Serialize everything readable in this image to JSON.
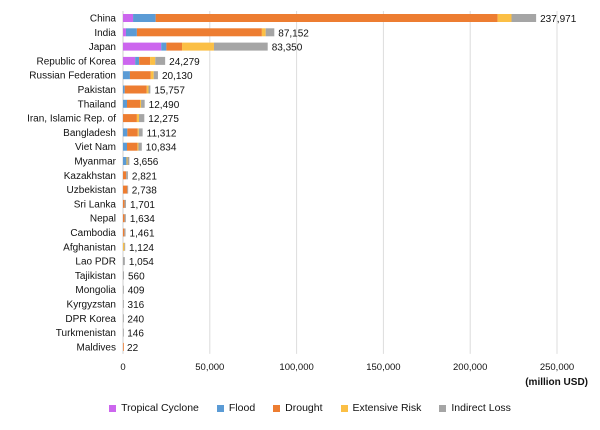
{
  "chart_data": {
    "type": "bar",
    "orientation": "horizontal",
    "stacked": true,
    "xlabel": "(million USD)",
    "xlim": [
      0,
      270000
    ],
    "xticks": [
      0,
      50000,
      100000,
      150000,
      200000,
      250000
    ],
    "xtick_labels": [
      "0",
      "50,000",
      "100,000",
      "150,000",
      "200,000",
      "250,000"
    ],
    "grid": "vertical",
    "legend_position": "bottom",
    "categories": [
      "China",
      "India",
      "Japan",
      "Republic of Korea",
      "Russian Federation",
      "Pakistan",
      "Thailand",
      "Iran, Islamic Rep. of",
      "Bangladesh",
      "Viet Nam",
      "Myanmar",
      "Kazakhstan",
      "Uzbekistan",
      "Sri Lanka",
      "Nepal",
      "Cambodia",
      "Afghanistan",
      "Lao PDR",
      "Tajikistan",
      "Mongolia",
      "Kyrgyzstan",
      "DPR Korea",
      "Turkmenistan",
      "Maldives"
    ],
    "total_labels": [
      "237,971",
      "87,152",
      "83,350",
      "24,279",
      "20,130",
      "15,757",
      "12,490",
      "12,275",
      "11,312",
      "10,834",
      "3,656",
      "2,821",
      "2,738",
      "1,701",
      "1,634",
      "1,461",
      "1,124",
      "1,054",
      "560",
      "409",
      "316",
      "240",
      "146",
      "22"
    ],
    "totals": [
      237971,
      87152,
      83350,
      24279,
      20130,
      15757,
      12490,
      12275,
      11312,
      10834,
      3656,
      2821,
      2738,
      1701,
      1634,
      1461,
      1124,
      1054,
      560,
      409,
      316,
      240,
      146,
      22
    ],
    "series": [
      {
        "name": "Tropical Cyclone",
        "color": "#cc66ee",
        "values": [
          5800,
          1700,
          22000,
          7000,
          0,
          0,
          0,
          0,
          0,
          0,
          0,
          0,
          0,
          0,
          0,
          0,
          0,
          0,
          0,
          0,
          0,
          0,
          0,
          0
        ]
      },
      {
        "name": "Flood",
        "color": "#5b9bd5",
        "values": [
          13000,
          6300,
          3000,
          2300,
          4000,
          1000,
          2300,
          0,
          2500,
          2300,
          2000,
          0,
          0,
          0,
          0,
          0,
          0,
          0,
          0,
          0,
          0,
          0,
          0,
          0
        ]
      },
      {
        "name": "Drought",
        "color": "#ed7d31",
        "values": [
          197000,
          72000,
          9000,
          6300,
          12000,
          12700,
          7500,
          8000,
          6000,
          6000,
          0,
          1800,
          2500,
          900,
          900,
          800,
          0,
          0,
          0,
          0,
          0,
          0,
          0,
          22
        ]
      },
      {
        "name": "Extensive Risk",
        "color": "#fbbf45",
        "values": [
          8000,
          2200,
          18400,
          3000,
          1700,
          1000,
          600,
          1200,
          600,
          600,
          600,
          0,
          0,
          0,
          0,
          0,
          800,
          0,
          0,
          0,
          0,
          0,
          0,
          0
        ]
      },
      {
        "name": "Indirect Loss",
        "color": "#a5a5a5",
        "values": [
          14171,
          4952,
          30950,
          5679,
          2430,
          1057,
          2090,
          3075,
          2212,
          1934,
          1056,
          1021,
          238,
          801,
          734,
          661,
          324,
          1054,
          560,
          409,
          316,
          240,
          146,
          0
        ]
      }
    ]
  }
}
